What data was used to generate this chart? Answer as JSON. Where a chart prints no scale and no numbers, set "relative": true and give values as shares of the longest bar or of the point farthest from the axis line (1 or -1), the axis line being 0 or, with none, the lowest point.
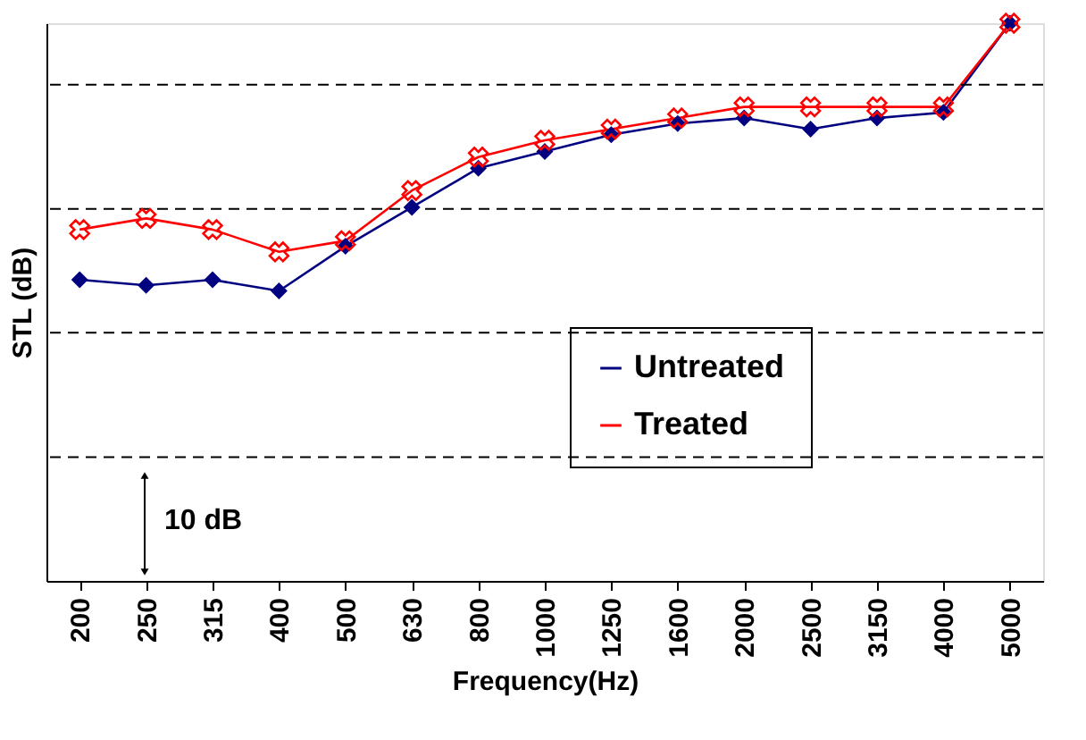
{
  "chart_data": {
    "type": "line",
    "relative": true,
    "xlabel": "Frequency(Hz)",
    "ylabel": "STL (dB)",
    "categories": [
      "200",
      "250",
      "315",
      "400",
      "500",
      "630",
      "800",
      "1000",
      "1250",
      "1600",
      "2000",
      "2500",
      "3150",
      "4000",
      "5000"
    ],
    "series": [
      {
        "name": "Untreated",
        "color": "#000080",
        "marker": "diamond",
        "values": [
          0.54,
          0.53,
          0.54,
          0.52,
          0.6,
          0.67,
          0.74,
          0.77,
          0.8,
          0.82,
          0.83,
          0.81,
          0.83,
          0.84,
          1
        ]
      },
      {
        "name": "Treated",
        "color": "#ff0000",
        "marker": "cross",
        "values": [
          0.63,
          0.65,
          0.63,
          0.59,
          0.61,
          0.7,
          0.76,
          0.79,
          0.81,
          0.83,
          0.85,
          0.85,
          0.85,
          0.85,
          1
        ]
      }
    ],
    "ref_lines": [
      {
        "axis": "y",
        "value": 0.222,
        "color": "#000000",
        "line_style": "dashed"
      },
      {
        "axis": "y",
        "value": 0.445,
        "color": "#000000",
        "line_style": "dashed"
      },
      {
        "axis": "y",
        "value": 0.667,
        "color": "#000000",
        "line_style": "dashed"
      },
      {
        "axis": "y",
        "value": 0.89,
        "color": "#000000",
        "line_style": "dashed"
      }
    ],
    "annotations": [
      "10 dB"
    ],
    "legend": "right"
  }
}
